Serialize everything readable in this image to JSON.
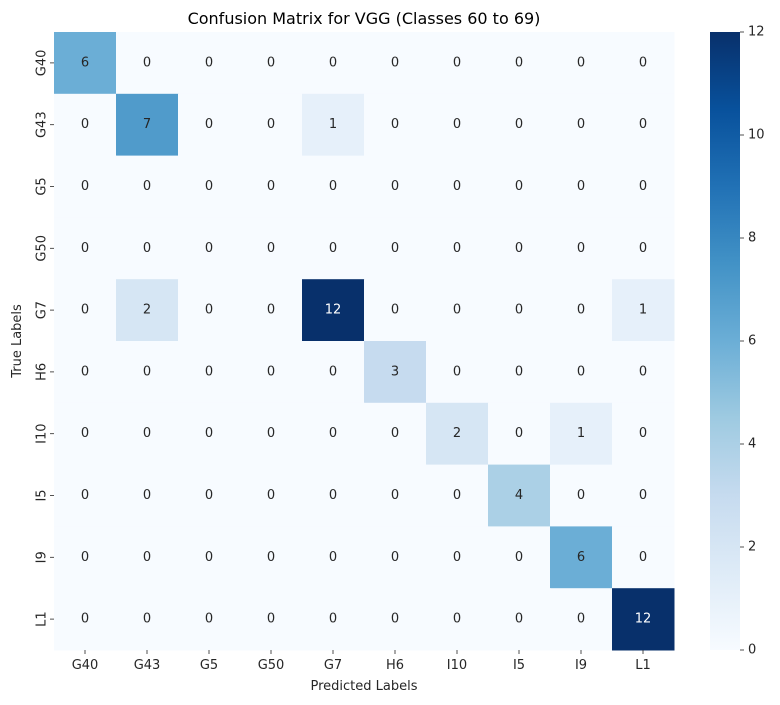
{
  "chart_data": {
    "type": "heatmap",
    "title": "Confusion Matrix for VGG (Classes 60 to 69)",
    "xlabel": "Predicted Labels",
    "ylabel": "True Labels",
    "x_categories": [
      "G40",
      "G43",
      "G5",
      "G50",
      "G7",
      "H6",
      "I10",
      "I5",
      "I9",
      "L1"
    ],
    "y_categories": [
      "G40",
      "G43",
      "G5",
      "G50",
      "G7",
      "H6",
      "I10",
      "I5",
      "I9",
      "L1"
    ],
    "values": [
      [
        6,
        0,
        0,
        0,
        0,
        0,
        0,
        0,
        0,
        0
      ],
      [
        0,
        7,
        0,
        0,
        1,
        0,
        0,
        0,
        0,
        0
      ],
      [
        0,
        0,
        0,
        0,
        0,
        0,
        0,
        0,
        0,
        0
      ],
      [
        0,
        0,
        0,
        0,
        0,
        0,
        0,
        0,
        0,
        0
      ],
      [
        0,
        2,
        0,
        0,
        12,
        0,
        0,
        0,
        0,
        1
      ],
      [
        0,
        0,
        0,
        0,
        0,
        3,
        0,
        0,
        0,
        0
      ],
      [
        0,
        0,
        0,
        0,
        0,
        0,
        2,
        0,
        1,
        0
      ],
      [
        0,
        0,
        0,
        0,
        0,
        0,
        0,
        4,
        0,
        0
      ],
      [
        0,
        0,
        0,
        0,
        0,
        0,
        0,
        0,
        6,
        0
      ],
      [
        0,
        0,
        0,
        0,
        0,
        0,
        0,
        0,
        0,
        12
      ]
    ],
    "colorbar": {
      "range": [
        0,
        12
      ],
      "ticks": [
        0,
        2,
        4,
        6,
        8,
        10,
        12
      ],
      "colormap": "Blues"
    },
    "annotations": true,
    "grid": false
  }
}
